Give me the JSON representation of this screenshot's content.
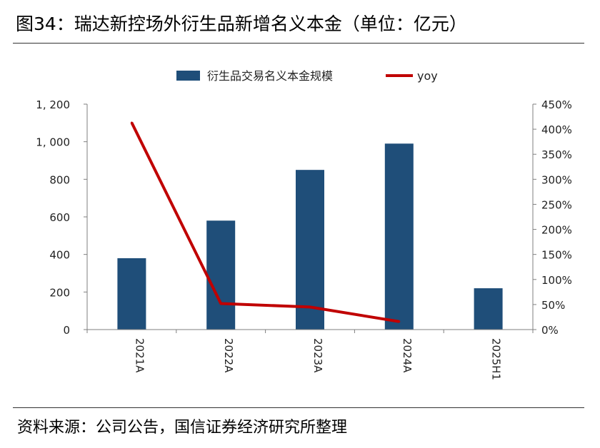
{
  "figure": {
    "title": "图34：瑞达新控场外衍生品新增名义本金（单位：亿元）",
    "source": "资料来源：公司公告，国信证券经济研究所整理"
  },
  "chart_data": {
    "type": "bar",
    "categories": [
      "2021A",
      "2022A",
      "2023A",
      "2024A",
      "2025H1"
    ],
    "series": [
      {
        "name": "衍生品交易名义本金规模",
        "type": "bar",
        "axis": "left",
        "color": "#1f4e79",
        "values": [
          380,
          580,
          850,
          990,
          220
        ]
      },
      {
        "name": "yoy",
        "type": "line",
        "axis": "right",
        "color": "#c00000",
        "values": [
          413,
          52,
          45,
          16,
          null
        ]
      }
    ],
    "y_left": {
      "range": [
        0,
        1200
      ],
      "ticks": [
        0,
        200,
        400,
        600,
        800,
        1000,
        1200
      ],
      "tick_labels": [
        "0",
        "200",
        "400",
        "600",
        "800",
        "1, 000",
        "1, 200"
      ]
    },
    "y_right": {
      "range": [
        0,
        450
      ],
      "ticks": [
        0,
        50,
        100,
        150,
        200,
        250,
        300,
        350,
        400,
        450
      ],
      "tick_labels": [
        "0%",
        "50%",
        "100%",
        "150%",
        "200%",
        "250%",
        "300%",
        "350%",
        "400%",
        "450%"
      ]
    },
    "grid": false,
    "legend": "top-center"
  }
}
